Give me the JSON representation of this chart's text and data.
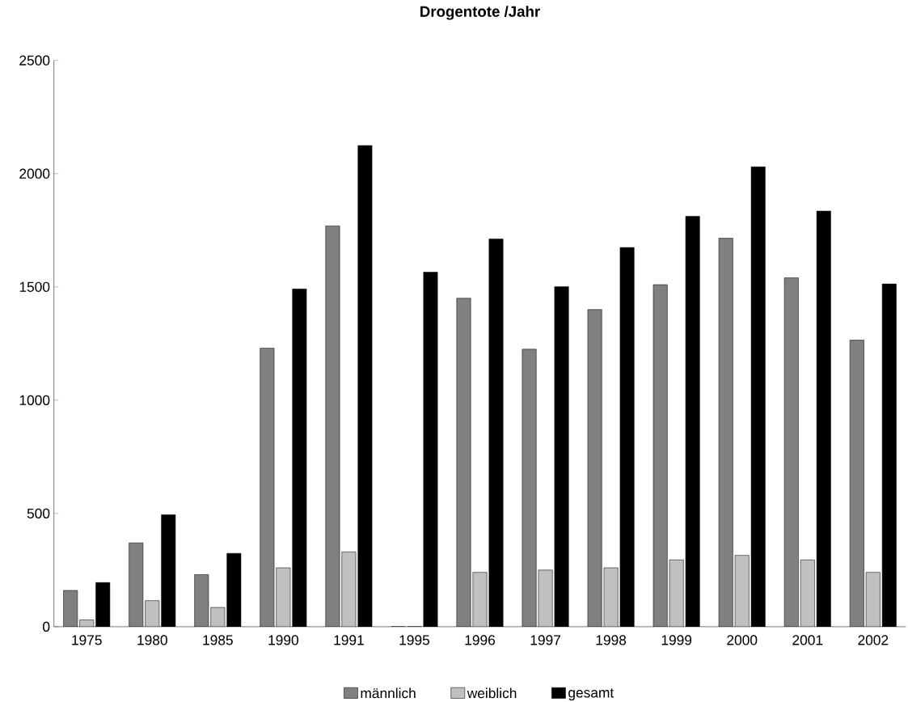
{
  "chart_data": {
    "type": "bar",
    "title": "Drogentote /Jahr",
    "categories": [
      "1975",
      "1980",
      "1985",
      "1990",
      "1991",
      "1995",
      "1996",
      "1997",
      "1998",
      "1999",
      "2000",
      "2001",
      "2002"
    ],
    "series": [
      {
        "name": "männlich",
        "color": "#808080",
        "values": [
          160,
          370,
          230,
          1230,
          1770,
          0,
          1450,
          1225,
          1400,
          1510,
          1715,
          1540,
          1265
        ]
      },
      {
        "name": "weiblich",
        "color": "#c0c0c0",
        "values": [
          30,
          115,
          85,
          260,
          330,
          0,
          240,
          250,
          260,
          295,
          315,
          295,
          240
        ]
      },
      {
        "name": "gesamt",
        "color": "#000000",
        "values": [
          195,
          494,
          324,
          1491,
          2125,
          1565,
          1712,
          1501,
          1674,
          1812,
          2030,
          1835,
          1513
        ]
      }
    ],
    "ylim": [
      0,
      2500
    ],
    "yticks": [
      0,
      500,
      1000,
      1500,
      2000,
      2500
    ],
    "grid": false,
    "legend": "bottom"
  }
}
